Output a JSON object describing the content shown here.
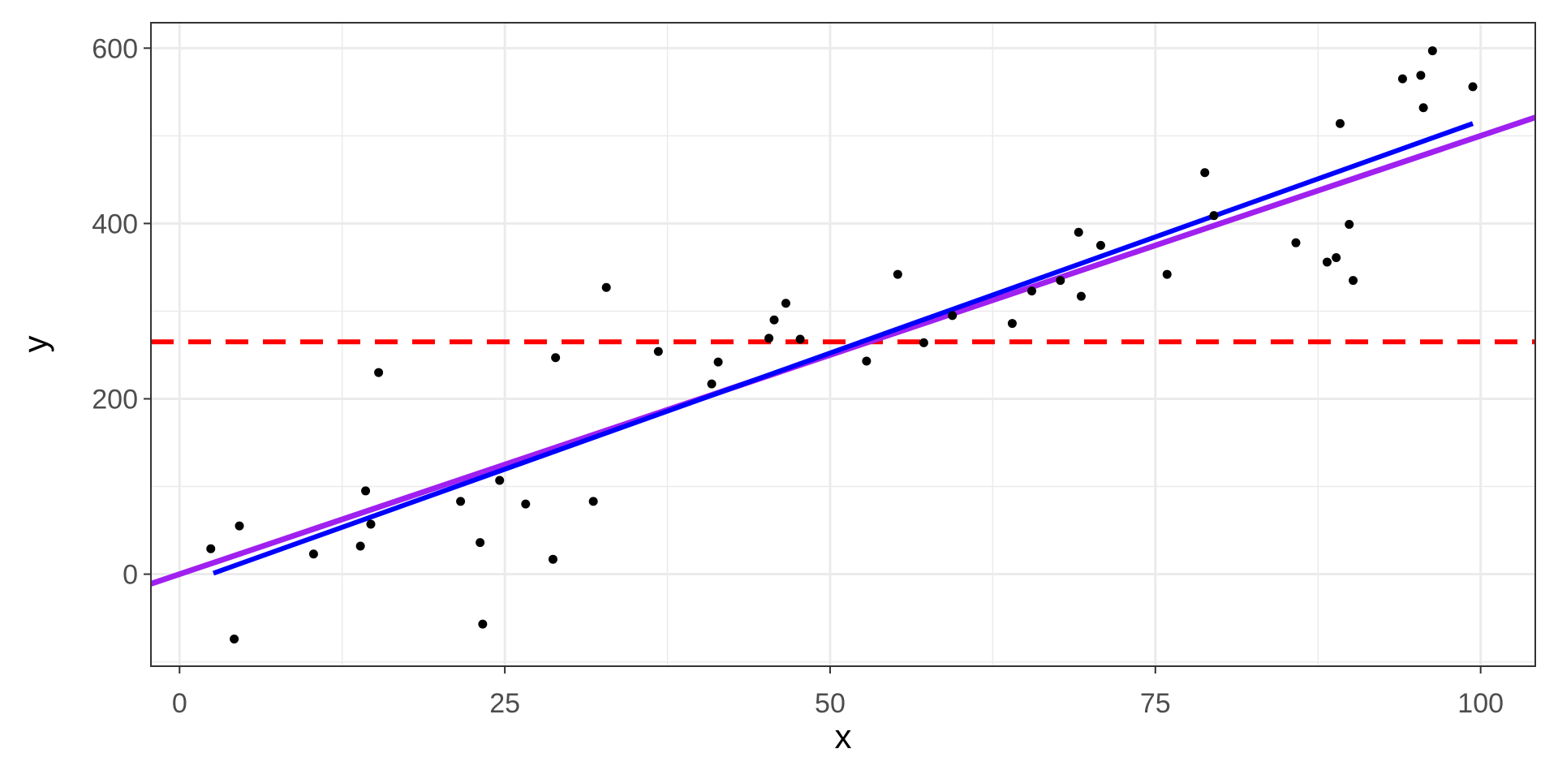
{
  "chart_data": {
    "type": "scatter",
    "x_label": "x",
    "y_label": "y",
    "xlim": [
      -2.2,
      104.2
    ],
    "ylim": [
      -105,
      629
    ],
    "xticks": [
      0,
      25,
      50,
      75,
      100
    ],
    "yticks": [
      0,
      200,
      400,
      600
    ],
    "minor_xgrid": [
      12.5,
      37.5,
      62.5,
      87.5
    ],
    "minor_ygrid": [
      -100,
      100,
      300,
      500
    ],
    "grid": true,
    "point_color": "#000000",
    "x": [
      2.4,
      4.6,
      4.2,
      10.3,
      13.9,
      14.3,
      14.7,
      15.3,
      21.6,
      23.1,
      23.3,
      24.6,
      26.6,
      28.7,
      28.9,
      31.8,
      32.8,
      36.8,
      40.9,
      41.4,
      45.3,
      45.7,
      46.6,
      47.7,
      52.8,
      55.2,
      57.2,
      59.4,
      64.0,
      65.5,
      67.7,
      69.1,
      69.3,
      70.8,
      75.9,
      78.8,
      79.5,
      85.8,
      88.2,
      88.9,
      89.2,
      89.9,
      90.2,
      94.0,
      95.4,
      95.6,
      96.3,
      99.4
    ],
    "values": [
      29,
      55,
      -74,
      23,
      32,
      95,
      57,
      230,
      83,
      36,
      -57,
      107,
      80,
      17,
      247,
      83,
      327,
      254,
      217,
      242,
      269,
      290,
      309,
      268,
      243,
      342,
      264,
      295,
      286,
      323,
      335,
      390,
      317,
      375,
      342,
      458,
      409,
      378,
      356,
      361,
      514,
      399,
      335,
      565,
      569,
      532,
      597,
      556
    ],
    "lines": [
      {
        "color": "#0000ff",
        "x": [
          2.6,
          99.4
        ],
        "values": [
          1,
          514
        ]
      }
    ],
    "ablines": [
      {
        "color": "#a020f0",
        "intercept": 0,
        "slope": 5
      }
    ],
    "hlines": [
      {
        "color": "#ff0000",
        "dashed": true,
        "y": 265
      }
    ]
  }
}
